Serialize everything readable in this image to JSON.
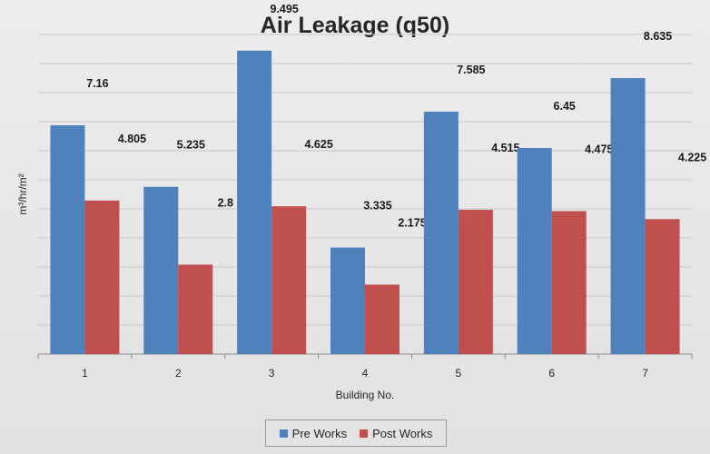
{
  "chart_data": {
    "type": "bar",
    "title": "Air Leakage (q50)",
    "xlabel": "Building No.",
    "ylabel": "m³/hr/m²",
    "categories": [
      "1",
      "2",
      "3",
      "4",
      "5",
      "6",
      "7"
    ],
    "series": [
      {
        "name": "Pre Works",
        "color": "#4f81bd",
        "values": [
          7.16,
          5.235,
          9.495,
          3.335,
          7.585,
          6.45,
          8.635
        ]
      },
      {
        "name": "Post Works",
        "color": "#c0504d",
        "values": [
          4.805,
          2.8,
          4.625,
          2.175,
          4.515,
          4.475,
          4.225
        ]
      }
    ],
    "ylim": [
      0,
      10
    ],
    "grid": true,
    "legend_position": "bottom"
  }
}
